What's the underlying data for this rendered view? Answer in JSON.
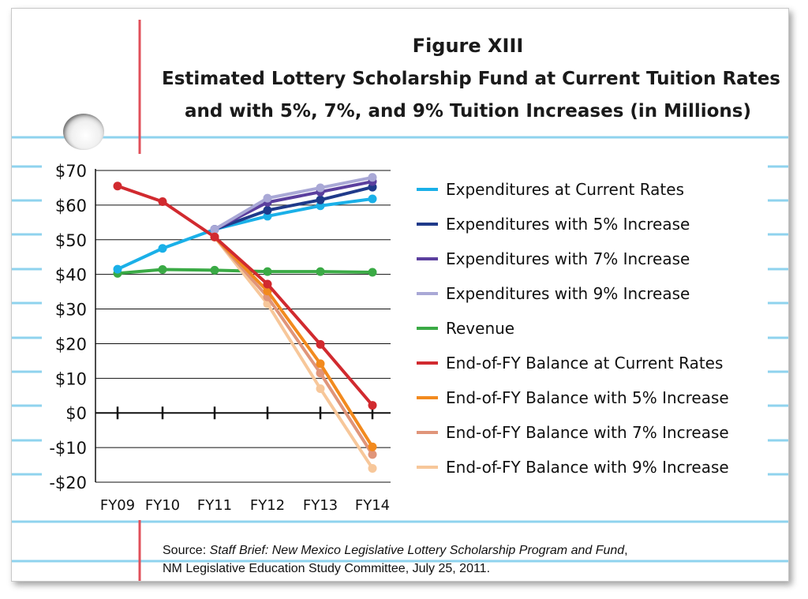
{
  "figure": {
    "title_line1": "Figure XIII",
    "title_line2": "Estimated Lottery Scholarship Fund at Current Tuition Rates",
    "title_line3": "and with 5%, 7%, and 9% Tuition Increases (in Millions)"
  },
  "source": {
    "prefix": "Source: ",
    "italic": "Staff Brief: New Mexico Legislative Lottery Scholarship Program and Fund",
    "suffix": ",",
    "line2": "NM Legislative Education Study Committee, July 25, 2011."
  },
  "colors": {
    "paper_line": "#8fd3ee",
    "margin_line": "#e0505a"
  },
  "chart_data": {
    "type": "line",
    "title": "Estimated Lottery Scholarship Fund at Current Tuition Rates and with 5%, 7%, and 9% Tuition Increases (in Millions)",
    "xlabel": "",
    "ylabel": "",
    "categories": [
      "FY09",
      "FY10",
      "FY11",
      "FY12",
      "FY13",
      "FY14"
    ],
    "ylim": [
      -20,
      70
    ],
    "yticks": [
      70,
      60,
      50,
      40,
      30,
      20,
      10,
      0,
      -10,
      -20
    ],
    "ytick_labels": [
      "$70",
      "$60",
      "$50",
      "$40",
      "$30",
      "$20",
      "$10",
      "$0",
      "-$10",
      "-$20"
    ],
    "grid": true,
    "legend_position": "right",
    "series": [
      {
        "name": "Expenditures at Current Rates",
        "color": "#1ab0e8",
        "values": [
          41.5,
          47.5,
          53,
          56.8,
          59.8,
          61.8
        ]
      },
      {
        "name": "Expenditures with 5% Increase",
        "color": "#1f3a8a",
        "values": [
          null,
          null,
          53,
          58.5,
          61.5,
          65.2
        ]
      },
      {
        "name": "Expenditures with 7% Increase",
        "color": "#5b3f9e",
        "values": [
          null,
          null,
          53,
          60.8,
          63.8,
          66.8
        ]
      },
      {
        "name": "Expenditures with 9% Increase",
        "color": "#a9a8d6",
        "values": [
          null,
          null,
          53,
          62,
          65,
          68
        ]
      },
      {
        "name": "Revenue",
        "color": "#3aaa45",
        "values": [
          40.3,
          41.4,
          41.2,
          40.8,
          40.8,
          40.6
        ]
      },
      {
        "name": "End-of-FY Balance at Current Rates",
        "color": "#d12a2f",
        "values": [
          65.5,
          61,
          50.8,
          37.2,
          19.8,
          2.2
        ]
      },
      {
        "name": "End-of-FY Balance with 5% Increase",
        "color": "#f28a1e",
        "values": [
          null,
          null,
          50.8,
          35.2,
          14.2,
          -9.8
        ]
      },
      {
        "name": "End-of-FY Balance with 7% Increase",
        "color": "#e0957a",
        "values": [
          null,
          null,
          50.8,
          33.5,
          11.5,
          -12
        ]
      },
      {
        "name": "End-of-FY Balance with 9% Increase",
        "color": "#f7c79a",
        "values": [
          null,
          null,
          50.8,
          31.5,
          7,
          -16
        ]
      }
    ]
  }
}
